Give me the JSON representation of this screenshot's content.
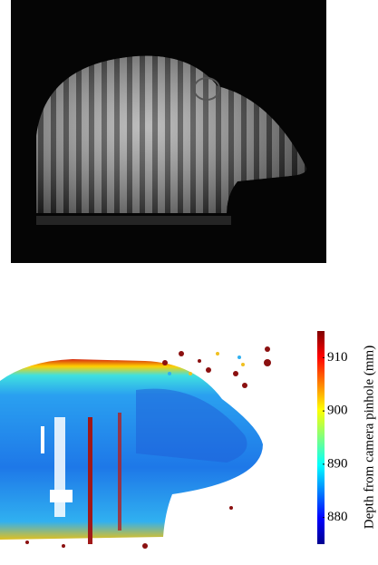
{
  "colorbar": {
    "label": "Depth from camera pinhole (mm)",
    "lim": [
      875,
      915
    ],
    "ticks": [
      880,
      890,
      900,
      910
    ]
  }
}
